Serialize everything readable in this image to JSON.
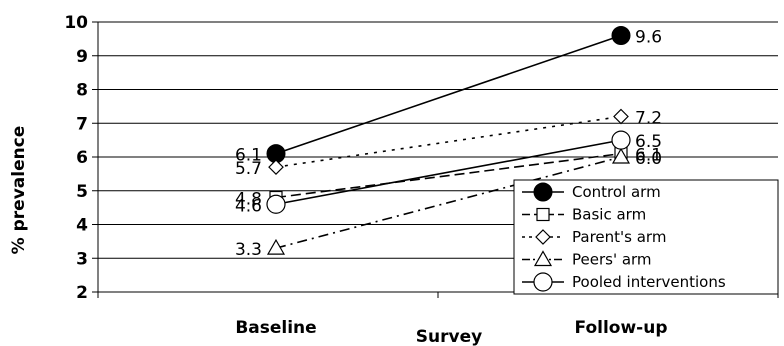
{
  "chart_data": {
    "type": "line",
    "categories": [
      "Baseline",
      "Follow-up"
    ],
    "xlabel": "Survey",
    "ylabel": "% prevalence",
    "ylim": [
      2,
      10
    ],
    "yticks": [
      2,
      3,
      4,
      5,
      6,
      7,
      8,
      9,
      10
    ],
    "grid": "horizontal",
    "legend_position": "bottom-right",
    "series": [
      {
        "name": "Control arm",
        "values": [
          6.1,
          9.6
        ],
        "labels": [
          "6.1",
          "9.6"
        ],
        "marker": "filled-circle",
        "dash": "solid"
      },
      {
        "name": "Basic arm",
        "values": [
          4.8,
          6.1
        ],
        "labels": [
          "4.8",
          "6.1"
        ],
        "marker": "square",
        "dash": "long-dash"
      },
      {
        "name": "Parent's arm",
        "values": [
          5.7,
          7.2
        ],
        "labels": [
          "5.7",
          "7.2"
        ],
        "marker": "diamond",
        "dash": "dotted"
      },
      {
        "name": "Peers' arm",
        "values": [
          3.3,
          6.0
        ],
        "labels": [
          "3.3",
          "6.0"
        ],
        "marker": "triangle",
        "dash": "dash-dot"
      },
      {
        "name": "Pooled interventions",
        "values": [
          4.6,
          6.5
        ],
        "labels": [
          "4.6",
          "6.5"
        ],
        "marker": "open-circle",
        "dash": "solid"
      }
    ]
  }
}
